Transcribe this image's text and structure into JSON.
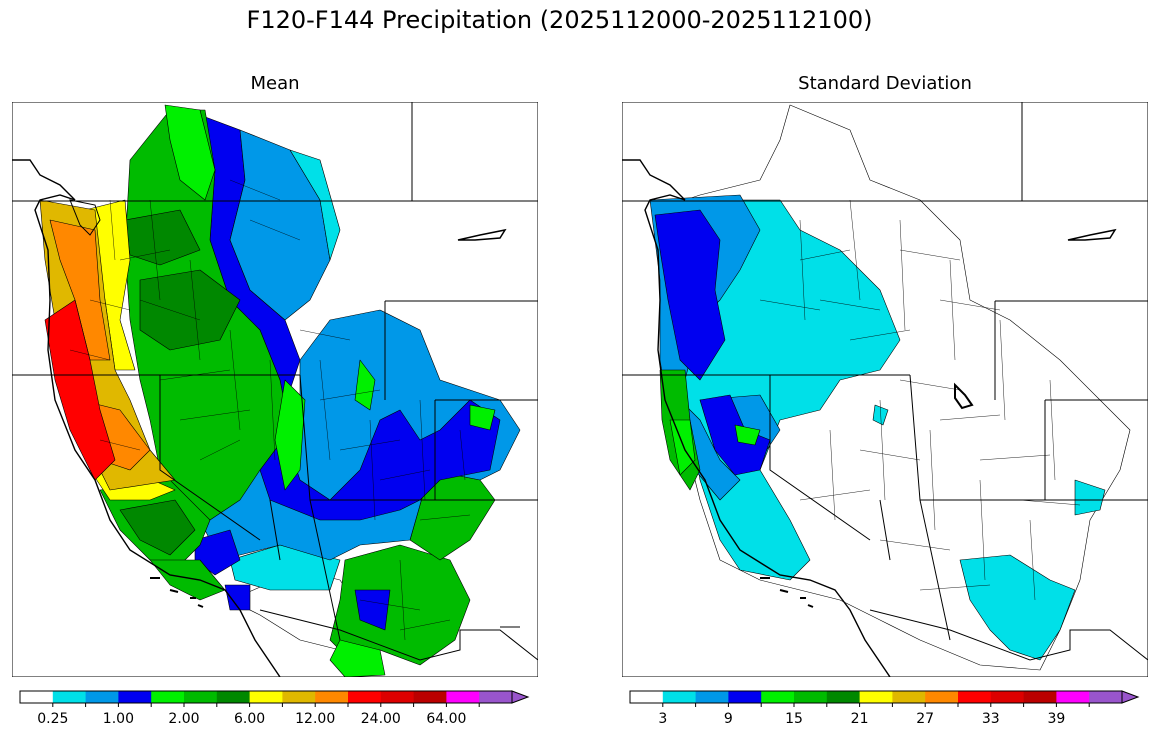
{
  "figure": {
    "title": "F120-F144 Precipitation (2025112000-2025112100)"
  },
  "panels": [
    {
      "title": "Mean",
      "colorbar": {
        "colors": [
          "#ffffff",
          "#00e0e8",
          "#0098e8",
          "#0000f0",
          "#00f000",
          "#00bb00",
          "#008800",
          "#ffff00",
          "#e0b800",
          "#ff8800",
          "#ff0000",
          "#dd0000",
          "#bb0000",
          "#ff00ff",
          "#9955cc"
        ],
        "tick_labels": [
          "0.25",
          "1.00",
          "2.00",
          "6.00",
          "12.00",
          "24.00",
          "64.00"
        ],
        "extend": "max"
      }
    },
    {
      "title": "Standard Deviation",
      "colorbar": {
        "colors": [
          "#ffffff",
          "#00e0e8",
          "#0098e8",
          "#0000f0",
          "#00f000",
          "#00bb00",
          "#008800",
          "#ffff00",
          "#e0b800",
          "#ff8800",
          "#ff0000",
          "#dd0000",
          "#bb0000",
          "#ff00ff",
          "#9955cc"
        ],
        "tick_labels": [
          "3",
          "9",
          "15",
          "21",
          "27",
          "33",
          "39"
        ],
        "extend": "max"
      }
    }
  ]
}
